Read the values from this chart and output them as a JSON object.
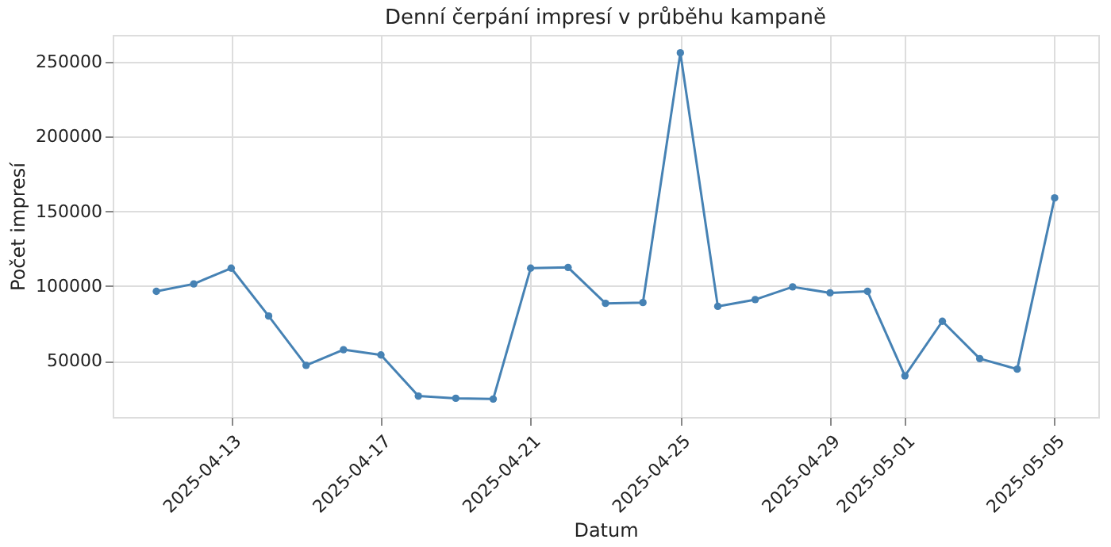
{
  "chart_data": {
    "type": "line",
    "title": "Denní čerpání impresí v průběhu kampaně",
    "xlabel": "Datum",
    "ylabel": "Počet impresí",
    "x": [
      "2025-04-11",
      "2025-04-12",
      "2025-04-13",
      "2025-04-14",
      "2025-04-15",
      "2025-04-16",
      "2025-04-17",
      "2025-04-18",
      "2025-04-19",
      "2025-04-20",
      "2025-04-21",
      "2025-04-22",
      "2025-04-23",
      "2025-04-24",
      "2025-04-25",
      "2025-04-26",
      "2025-04-27",
      "2025-04-28",
      "2025-04-29",
      "2025-04-30",
      "2025-05-01",
      "2025-05-02",
      "2025-05-03",
      "2025-05-04",
      "2025-05-05"
    ],
    "series": [
      {
        "color": "#4682b4",
        "values": [
          96500,
          101500,
          112000,
          80000,
          47000,
          57500,
          54000,
          26500,
          25000,
          24500,
          112000,
          112500,
          88500,
          89000,
          256000,
          86500,
          91000,
          99500,
          95500,
          96500,
          40000,
          76500,
          51500,
          44500,
          159000
        ]
      }
    ],
    "xlim": [
      "2025-04-09T20:00",
      "2025-05-06T04:00"
    ],
    "xticks": [
      "2025-04-13",
      "2025-04-17",
      "2025-04-21",
      "2025-04-25",
      "2025-04-29",
      "2025-05-01",
      "2025-05-05"
    ],
    "ylim": [
      12500,
      268000
    ],
    "yticks": [
      50000,
      100000,
      150000,
      200000,
      250000
    ],
    "grid": true,
    "marker": "circle",
    "line_style": "solid"
  }
}
